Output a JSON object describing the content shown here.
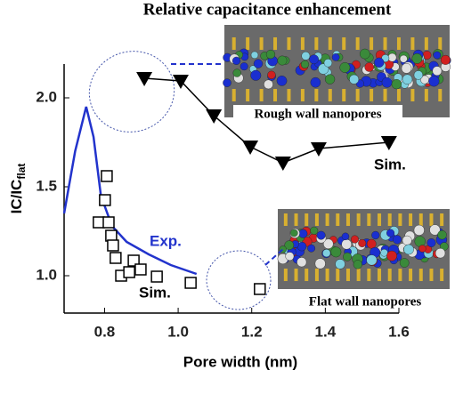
{
  "chart_data": {
    "type": "scatter-line",
    "title": "Relative capacitance enhancement",
    "xlabel": "Pore width (nm)",
    "ylabel": "IC/IC",
    "ylabel_sub": "flat",
    "xlim": [
      0.69,
      1.6
    ],
    "ylim": [
      0.79,
      2.19
    ],
    "xticks": [
      0.8,
      {
        "value": 1,
        "label": "1.0"
      },
      1.2,
      1.4,
      1.6
    ],
    "yticks": [
      {
        "value": 1,
        "label": "1.0"
      },
      1.5,
      {
        "value": 2,
        "label": "2.0"
      }
    ],
    "annotations": {
      "rough": "Rough wall nanopores",
      "flat": "Flat wall nanopores",
      "sim_rough": "Sim.",
      "sim_flat": "Sim.",
      "exp": "Exp."
    },
    "series": [
      {
        "name": "Exp.",
        "color": "#2233cc",
        "marker": "none",
        "line": true,
        "x": [
          0.69,
          0.72,
          0.75,
          0.77,
          0.79,
          0.82,
          0.86,
          0.92,
          0.98,
          1.05
        ],
        "values": [
          1.35,
          1.7,
          1.95,
          1.78,
          1.45,
          1.28,
          1.19,
          1.12,
          1.06,
          1.01
        ]
      },
      {
        "name": "Sim.",
        "color": "#000000",
        "marker": "triangle",
        "line": true,
        "x": [
          0.908,
          1.007,
          1.097,
          1.196,
          1.285,
          1.382,
          1.573
        ],
        "values": [
          2.11,
          2.095,
          1.9,
          1.725,
          1.635,
          1.715,
          1.75
        ]
      },
      {
        "name": "Sim.",
        "color": "#000000",
        "marker": "square",
        "line": false,
        "x": [
          0.784,
          0.801,
          0.806,
          0.811,
          0.818,
          0.823,
          0.83,
          0.845,
          0.867,
          0.879,
          0.898,
          0.942,
          1.034,
          1.222
        ],
        "values": [
          1.3,
          1.425,
          1.56,
          1.3,
          1.225,
          1.17,
          1.1,
          1.0,
          1.02,
          1.085,
          1.035,
          0.995,
          0.96,
          0.925
        ]
      }
    ]
  }
}
